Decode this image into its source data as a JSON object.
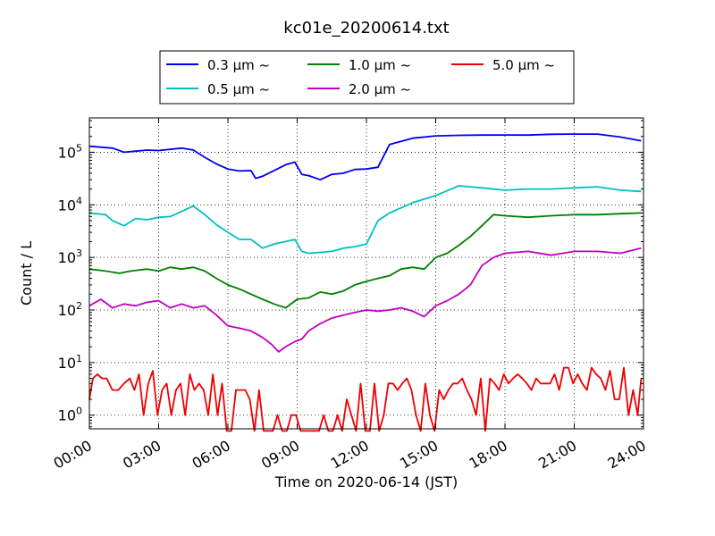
{
  "chart_data": {
    "type": "line",
    "title": "kc01e_20200614.txt",
    "xlabel": "Time on 2020-06-14 (JST)",
    "ylabel": "Count / L",
    "yscale": "log",
    "ylim": [
      0.55,
      450000
    ],
    "xlim": [
      "00:00",
      "24:00"
    ],
    "x_ticks": [
      "00:00",
      "03:00",
      "06:00",
      "09:00",
      "12:00",
      "15:00",
      "18:00",
      "21:00",
      "24:00"
    ],
    "y_ticks": [
      {
        "value": 1,
        "base": "10",
        "exp": "0"
      },
      {
        "value": 10,
        "base": "10",
        "exp": "1"
      },
      {
        "value": 100,
        "base": "10",
        "exp": "2"
      },
      {
        "value": 1000,
        "base": "10",
        "exp": "3"
      },
      {
        "value": 10000,
        "base": "10",
        "exp": "4"
      },
      {
        "value": 100000,
        "base": "10",
        "exp": "5"
      }
    ],
    "grid": true,
    "legend_placement": "top-center",
    "series": [
      {
        "name": "0.3 μm ~",
        "color": "#0000ee",
        "x": [
          0,
          1,
          1.5,
          2,
          2.5,
          3,
          4,
          4.5,
          5,
          5.5,
          6,
          6.5,
          7,
          7.2,
          7.5,
          8,
          8.5,
          8.9,
          9.2,
          9.5,
          10,
          10.5,
          11,
          11.5,
          12,
          12.5,
          13,
          14,
          15,
          16,
          17,
          18,
          19,
          20,
          21,
          22,
          23,
          23.9
        ],
        "values": [
          130000,
          120000,
          100000,
          105000,
          110000,
          108000,
          120000,
          110000,
          80000,
          60000,
          48000,
          44000,
          45000,
          32000,
          35000,
          45000,
          58000,
          65000,
          38000,
          36000,
          30000,
          38000,
          40000,
          47000,
          48000,
          52000,
          140000,
          185000,
          205000,
          210000,
          212000,
          213000,
          212000,
          220000,
          222000,
          222000,
          195000,
          165000
        ]
      },
      {
        "name": "0.5 μm ~",
        "color": "#00bfbf",
        "x": [
          0,
          0.7,
          1,
          1.5,
          2,
          2.5,
          3,
          3.5,
          4,
          4.5,
          5,
          5.5,
          6,
          6.5,
          7,
          7.5,
          8,
          8.5,
          8.9,
          9.2,
          9.5,
          10,
          10.5,
          11,
          11.5,
          12,
          12.5,
          13,
          14,
          15,
          16,
          17,
          18,
          19,
          20,
          21,
          22,
          23,
          23.9
        ],
        "values": [
          7000,
          6500,
          5000,
          4000,
          5500,
          5200,
          5800,
          6000,
          7500,
          9500,
          6500,
          4200,
          3000,
          2200,
          2200,
          1500,
          1800,
          2000,
          2200,
          1300,
          1200,
          1250,
          1300,
          1500,
          1600,
          1800,
          5000,
          7000,
          11000,
          15000,
          23000,
          21000,
          19000,
          20000,
          20000,
          21000,
          22000,
          19000,
          18000
        ]
      },
      {
        "name": "1.0 μm ~",
        "color": "#007f00",
        "x": [
          0,
          0.7,
          1.3,
          1.8,
          2.5,
          3,
          3.5,
          4,
          4.5,
          5,
          5.5,
          6,
          6.5,
          7,
          7.5,
          8,
          8.5,
          9,
          9.5,
          10,
          10.5,
          11,
          11.5,
          12,
          12.5,
          13,
          13.5,
          14,
          14.5,
          15,
          15.5,
          16,
          16.5,
          17,
          17.5,
          18,
          19,
          20,
          21,
          22,
          23,
          23.9
        ],
        "values": [
          600,
          550,
          500,
          550,
          600,
          550,
          650,
          600,
          650,
          550,
          400,
          300,
          250,
          200,
          160,
          130,
          110,
          160,
          170,
          220,
          200,
          230,
          300,
          350,
          400,
          450,
          600,
          650,
          600,
          1000,
          1200,
          1700,
          2500,
          4000,
          6500,
          6200,
          5800,
          6200,
          6500,
          6500,
          6800,
          7000
        ]
      },
      {
        "name": "2.0 μm ~",
        "color": "#bf00bf",
        "x": [
          0,
          0.5,
          1,
          1.5,
          2,
          2.5,
          3,
          3.5,
          4,
          4.5,
          5,
          5.5,
          6,
          6.5,
          7,
          7.5,
          7.9,
          8.2,
          8.5,
          8.9,
          9.2,
          9.5,
          10,
          10.5,
          11,
          11.5,
          12,
          12.5,
          13,
          13.5,
          14,
          14.5,
          15,
          15.5,
          16,
          16.5,
          17,
          17.5,
          18,
          19,
          20,
          21,
          22,
          23,
          23.9
        ],
        "values": [
          120,
          160,
          110,
          130,
          120,
          140,
          150,
          110,
          130,
          110,
          120,
          80,
          50,
          45,
          40,
          30,
          22,
          16,
          20,
          25,
          28,
          40,
          55,
          70,
          80,
          90,
          100,
          95,
          100,
          110,
          95,
          75,
          120,
          150,
          200,
          300,
          700,
          1000,
          1200,
          1300,
          1100,
          1300,
          1300,
          1200,
          1500
        ]
      },
      {
        "name": "5.0 μm ~",
        "color": "#ee0000",
        "x": [
          0,
          0.15,
          0.35,
          0.55,
          0.75,
          1,
          1.25,
          1.5,
          1.75,
          1.95,
          2.15,
          2.35,
          2.55,
          2.75,
          2.95,
          3.15,
          3.35,
          3.55,
          3.75,
          3.95,
          4.15,
          4.35,
          4.55,
          4.75,
          4.95,
          5.15,
          5.35,
          5.55,
          5.75,
          5.95,
          6.15,
          6.35,
          6.55,
          6.75,
          6.95,
          7.15,
          7.35,
          7.55,
          7.75,
          7.95,
          8.15,
          8.35,
          8.55,
          8.75,
          8.95,
          9.15,
          9.35,
          9.55,
          9.75,
          9.95,
          10.15,
          10.35,
          10.55,
          10.75,
          10.95,
          11.15,
          11.35,
          11.55,
          11.75,
          11.95,
          12.15,
          12.35,
          12.55,
          12.75,
          12.95,
          13.15,
          13.35,
          13.55,
          13.75,
          13.95,
          14.15,
          14.35,
          14.55,
          14.75,
          14.95,
          15.15,
          15.35,
          15.55,
          15.75,
          15.95,
          16.15,
          16.35,
          16.55,
          16.75,
          16.95,
          17.15,
          17.35,
          17.55,
          17.75,
          17.95,
          18.15,
          18.35,
          18.55,
          18.75,
          18.95,
          19.15,
          19.35,
          19.55,
          19.75,
          19.95,
          20.15,
          20.35,
          20.55,
          20.75,
          20.95,
          21.15,
          21.35,
          21.55,
          21.75,
          21.95,
          22.15,
          22.35,
          22.55,
          22.75,
          22.95,
          23.15,
          23.35,
          23.55,
          23.75,
          23.9
        ],
        "values": [
          2,
          5,
          6,
          5,
          5,
          3,
          3,
          4,
          5,
          3,
          6,
          1,
          4,
          7,
          1,
          3,
          4,
          1,
          3,
          4,
          1,
          6,
          3,
          4,
          3,
          1,
          6,
          1,
          4,
          0.5,
          0.5,
          3,
          3,
          3,
          2,
          0.5,
          3,
          0.5,
          0.5,
          0.5,
          1,
          0.5,
          0.5,
          1,
          1,
          0.5,
          0.5,
          0.5,
          0.5,
          0.5,
          1,
          0.5,
          0.5,
          1,
          0.5,
          2,
          1,
          0.5,
          4,
          0.5,
          0.5,
          4,
          0.5,
          1,
          4,
          4,
          3,
          4,
          5,
          3,
          1,
          0.5,
          4,
          1,
          0.5,
          3,
          2,
          3,
          4,
          4,
          5,
          3,
          2,
          1,
          5,
          0.5,
          5,
          4,
          3,
          6,
          4,
          5,
          6,
          5,
          4,
          3,
          5,
          4,
          4,
          4,
          6,
          3,
          8,
          8,
          4,
          6,
          4,
          3,
          8,
          6,
          5,
          3,
          7,
          2,
          2,
          8,
          1,
          3,
          1,
          5
        ]
      }
    ]
  }
}
